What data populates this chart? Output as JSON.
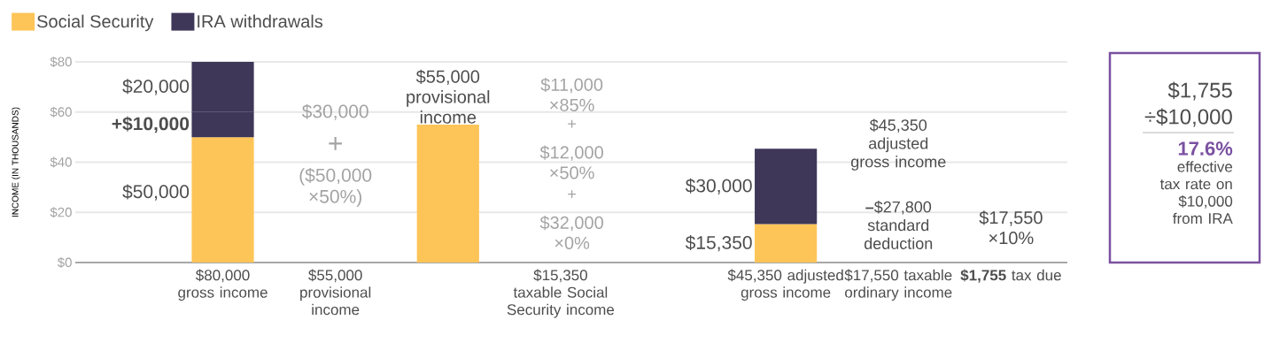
{
  "chart_data": {
    "type": "bar",
    "stacked": true,
    "categories": [
      "$80,000 gross income",
      "$55,000 provisional income",
      null,
      "$15,350 taxable Social Security income",
      null,
      "$45,350 adjusted gross income",
      "$17,550 taxable ordinary income",
      "**$1,755** tax due"
    ],
    "series": [
      {
        "name": "Social Security",
        "color": "#fdc457",
        "values": [
          50,
          null,
          55,
          null,
          null,
          15.35,
          null,
          null
        ]
      },
      {
        "color": "#3e3758",
        "values": [
          10,
          null,
          null,
          null,
          null,
          null,
          null,
          null
        ]
      },
      {
        "name": "IRA withdrawals",
        "color": "#3e3758",
        "values": [
          20,
          null,
          null,
          null,
          null,
          30,
          null,
          null
        ]
      }
    ],
    "ylim": [
      0,
      80
    ],
    "yticks": [
      {
        "value": 0,
        "label": "$0"
      },
      {
        "value": 20,
        "label": "$20"
      },
      {
        "value": 40,
        "label": "$40"
      },
      {
        "value": 60,
        "label": "$60"
      },
      {
        "value": 80,
        "label": "$80"
      }
    ],
    "ylabel": "INCOME (IN THOUSANDS)",
    "grid": "y",
    "legend": "top left",
    "annotations": [
      {
        "text": "$20,000",
        "x": "$80,000 gross income",
        "y": 80
      },
      {
        "text": "+$10,000",
        "x": "$80,000 gross income",
        "y": 60
      },
      "$50,000",
      {
        "text": "$55,000 provisional income",
        "y": 55
      },
      {
        "text": "$30,000",
        "x": "$45,350 adjusted gross income",
        "y": 45.35
      },
      {
        "text": "$15,350",
        "x": "$45,350 adjusted gross income",
        "y": 15.35
      },
      "$30,000",
      "+",
      "($50,000 ×50%)",
      "$11,000 ×85%",
      "+",
      "$12,000 ×50%",
      "+",
      "$32,000 ×0%",
      "$45,350 adjusted gross income",
      "**–**$27,800 standard deduction",
      "$17,550 ×10%",
      "$1,755",
      "÷$10,000",
      "17.6%",
      "effective tax rate on $10,000 from IRA"
    ]
  }
}
